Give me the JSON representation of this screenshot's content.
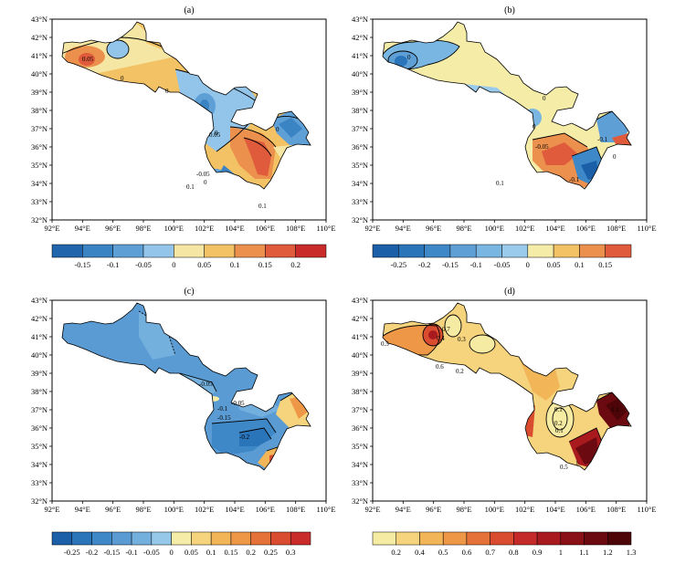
{
  "x_ticks": [
    "92°E",
    "94°E",
    "96°E",
    "98°E",
    "100°E",
    "102°E",
    "104°E",
    "106°E",
    "108°E",
    "110°E"
  ],
  "y_ticks": [
    "32°N",
    "33°N",
    "34°N",
    "35°N",
    "36°N",
    "37°N",
    "38°N",
    "39°N",
    "40°N",
    "41°N",
    "42°N",
    "43°N"
  ],
  "panels": [
    {
      "label": "(a)",
      "colorbar": {
        "colors": [
          "#2166ac",
          "#3a84c4",
          "#5e9fd6",
          "#92c5e9",
          "#f5e7a3",
          "#f2c265",
          "#ec904d",
          "#e05a3c",
          "#c92a2a"
        ],
        "labels": [
          "-0.15",
          "-0.1",
          "-0.05",
          "0",
          "0.05",
          "0.1",
          "0.15",
          "0.2"
        ]
      },
      "contour_labels": [
        "0.05",
        "0",
        "0",
        "0",
        "0",
        "0.05",
        "-0.05",
        "0.1",
        "0",
        "0.1"
      ]
    },
    {
      "label": "(b)",
      "colorbar": {
        "colors": [
          "#1b5fa8",
          "#2a74ba",
          "#3f88c8",
          "#5e9fd6",
          "#7ab6e2",
          "#9bcbec",
          "#f5eca8",
          "#f2c265",
          "#ec904d",
          "#e05a3c"
        ],
        "labels": [
          "-0.25",
          "-0.2",
          "-0.15",
          "-0.1",
          "-0.05",
          "0",
          "0.05",
          "0.1",
          "0.15"
        ]
      },
      "contour_labels": [
        "0",
        "0",
        "0",
        "-0.05",
        "-0.1",
        "0.1",
        "-0.1",
        "0"
      ]
    },
    {
      "label": "(c)",
      "colorbar": {
        "colors": [
          "#1b5fa8",
          "#2a74ba",
          "#3f88c8",
          "#5a9bd3",
          "#74b0de",
          "#96c8ea",
          "#f5eca8",
          "#f5d47d",
          "#f2b659",
          "#ee9747",
          "#e57239",
          "#d94c2f",
          "#c92a2a"
        ],
        "labels": [
          "-0.25",
          "-0.2",
          "-0.15",
          "-0.1",
          "-0.05",
          "0",
          "0.05",
          "0.1",
          "0.15",
          "0.2",
          "0.25",
          "0.3"
        ]
      },
      "contour_labels": [
        "-0.05",
        "-0.05",
        "-0.1",
        "-0.15",
        "-0.2"
      ]
    },
    {
      "label": "(d)",
      "colorbar": {
        "colors": [
          "#f6eba3",
          "#f5d47d",
          "#f2b659",
          "#ee9747",
          "#e57239",
          "#d94c2f",
          "#c52a2a",
          "#a81a1e",
          "#8a1117",
          "#6b0a10",
          "#4e0508"
        ],
        "labels": [
          "0.2",
          "0.4",
          "0.5",
          "0.6",
          "0.7",
          "0.8",
          "0.9",
          "1",
          "1.1",
          "1.2",
          "1.3"
        ]
      },
      "contour_labels": [
        "0.7",
        "0.4",
        "0.5",
        "0.6",
        "0.3",
        "0.2",
        "0.1",
        "0.2",
        "0.1",
        "1.1",
        "1",
        "0.5"
      ]
    }
  ]
}
